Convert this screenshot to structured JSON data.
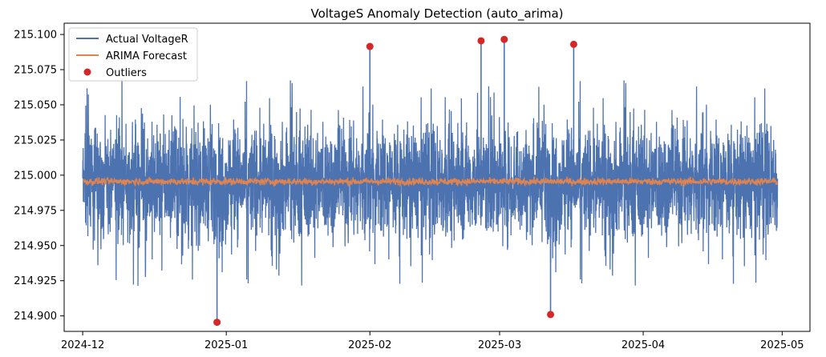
{
  "chart_data": {
    "type": "line",
    "title": "VoltageS Anomaly Detection (auto_arima)",
    "xlabel": "",
    "ylabel": "",
    "x_range": [
      "2024-11-27",
      "2025-05-07"
    ],
    "ylim": [
      214.889,
      215.108
    ],
    "x_ticks": [
      "2024-12-01",
      "2025-01-01",
      "2025-02-01",
      "2025-03-01",
      "2025-04-01",
      "2025-05-01"
    ],
    "x_tick_labels": [
      "2024-12",
      "2025-01",
      "2025-02",
      "2025-03",
      "2025-04",
      "2025-05"
    ],
    "y_ticks": [
      214.9,
      214.925,
      214.95,
      214.975,
      215.0,
      215.025,
      215.05,
      215.075,
      215.1
    ],
    "y_tick_labels": [
      "214.900",
      "214.925",
      "214.950",
      "214.975",
      "215.000",
      "215.025",
      "215.050",
      "215.075",
      "215.100"
    ],
    "grid": false,
    "legend_position": "top-left",
    "series": [
      {
        "name": "Actual VoltageR",
        "type": "line",
        "color": "#4c72b0",
        "x_start": "2024-12-01",
        "x_end": "2025-04-30",
        "points": 4300,
        "mean": 214.995,
        "typical_band": [
          214.962,
          215.03
        ],
        "extremes": [
          214.921,
          215.069
        ]
      },
      {
        "name": "ARIMA Forecast",
        "type": "line",
        "color": "#dd8452",
        "x_start": "2024-12-01",
        "x_end": "2025-04-30",
        "mean": 214.9955,
        "band": [
          214.9933,
          214.9978
        ]
      },
      {
        "name": "Outliers",
        "type": "scatter",
        "color": "#d62728",
        "points": [
          {
            "x": "2024-12-30",
            "y": 214.8955
          },
          {
            "x": "2025-02-01",
            "y": 215.0915
          },
          {
            "x": "2025-02-25",
            "y": 215.0955
          },
          {
            "x": "2025-03-02",
            "y": 215.0965
          },
          {
            "x": "2025-03-12",
            "y": 214.901
          },
          {
            "x": "2025-03-17",
            "y": 215.093
          }
        ]
      }
    ]
  }
}
